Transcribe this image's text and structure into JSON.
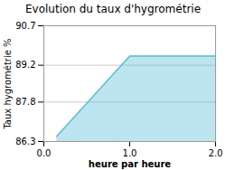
{
  "chart_data": {
    "type": "area",
    "title": "Evolution du taux d'hygrométrie",
    "xlabel": "heure par heure",
    "ylabel": "Taux hygrométrie %",
    "x": [
      0.15,
      1.0,
      2.0
    ],
    "values": [
      86.5,
      89.55,
      89.55
    ],
    "color": "#5bbfd8",
    "xlim": [
      0,
      2
    ],
    "xticks": [
      0,
      1,
      2
    ],
    "ylim": [
      86.3,
      90.7
    ],
    "yticks": [
      86.3,
      87.8,
      89.2,
      90.7
    ],
    "grid": true
  }
}
